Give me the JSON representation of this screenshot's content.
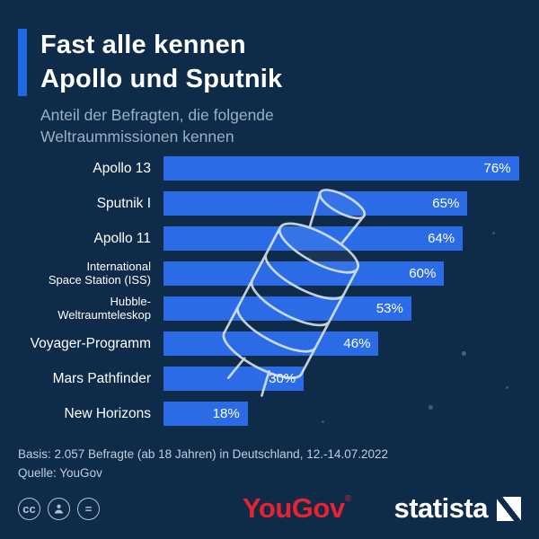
{
  "header": {
    "title_line1": "Fast alle kennen",
    "title_line2": "Apollo und Sputnik",
    "subtitle_line1": "Anteil der Befragten, die folgende",
    "subtitle_line2": "Weltraummissionen kennen"
  },
  "chart_data": {
    "type": "bar",
    "orientation": "horizontal",
    "title": "Fast alle kennen Apollo und Sputnik",
    "subtitle": "Anteil der Befragten, die folgende Weltraummissionen kennen",
    "categories": [
      "Apollo 13",
      "Sputnik I",
      "Apollo 11",
      "International Space Station (ISS)",
      "Hubble-Weltraumteleskop",
      "Voyager-Programm",
      "Mars Pathfinder",
      "New Horizons"
    ],
    "values": [
      76,
      65,
      64,
      60,
      53,
      46,
      30,
      18
    ],
    "display_labels": [
      "Apollo 13",
      "Sputnik I",
      "Apollo 11",
      "International\nSpace Station (ISS)",
      "Hubble-\nWeltraumteleskop",
      "Voyager-Programm",
      "Mars Pathfinder",
      "New Horizons"
    ],
    "display_values": [
      "76%",
      "65%",
      "64%",
      "60%",
      "53%",
      "46%",
      "30%",
      "18%"
    ],
    "unit": "%",
    "xlim": [
      0,
      78
    ],
    "grid": false,
    "legend": false,
    "bar_color": "#2b6ce6"
  },
  "footer": {
    "basis": "Basis: 2.057 Befragte (ab 18 Jahren) in Deutschland, 12.-14.07.2022",
    "source": "Quelle: YouGov"
  },
  "branding": {
    "yougov_label": "YouGov",
    "yougov_reg": "®",
    "statista_label": "statista"
  },
  "license": {
    "cc_glyph": "cc",
    "attribution_icon": "person-icon",
    "equals_glyph": "="
  },
  "colors": {
    "background": "#0f2b4a",
    "bar": "#2b6ce6",
    "accent_bar": "#1f6ae0",
    "title": "#ffffff",
    "subtitle": "#9db0c2",
    "yougov_red": "#e8232f"
  }
}
